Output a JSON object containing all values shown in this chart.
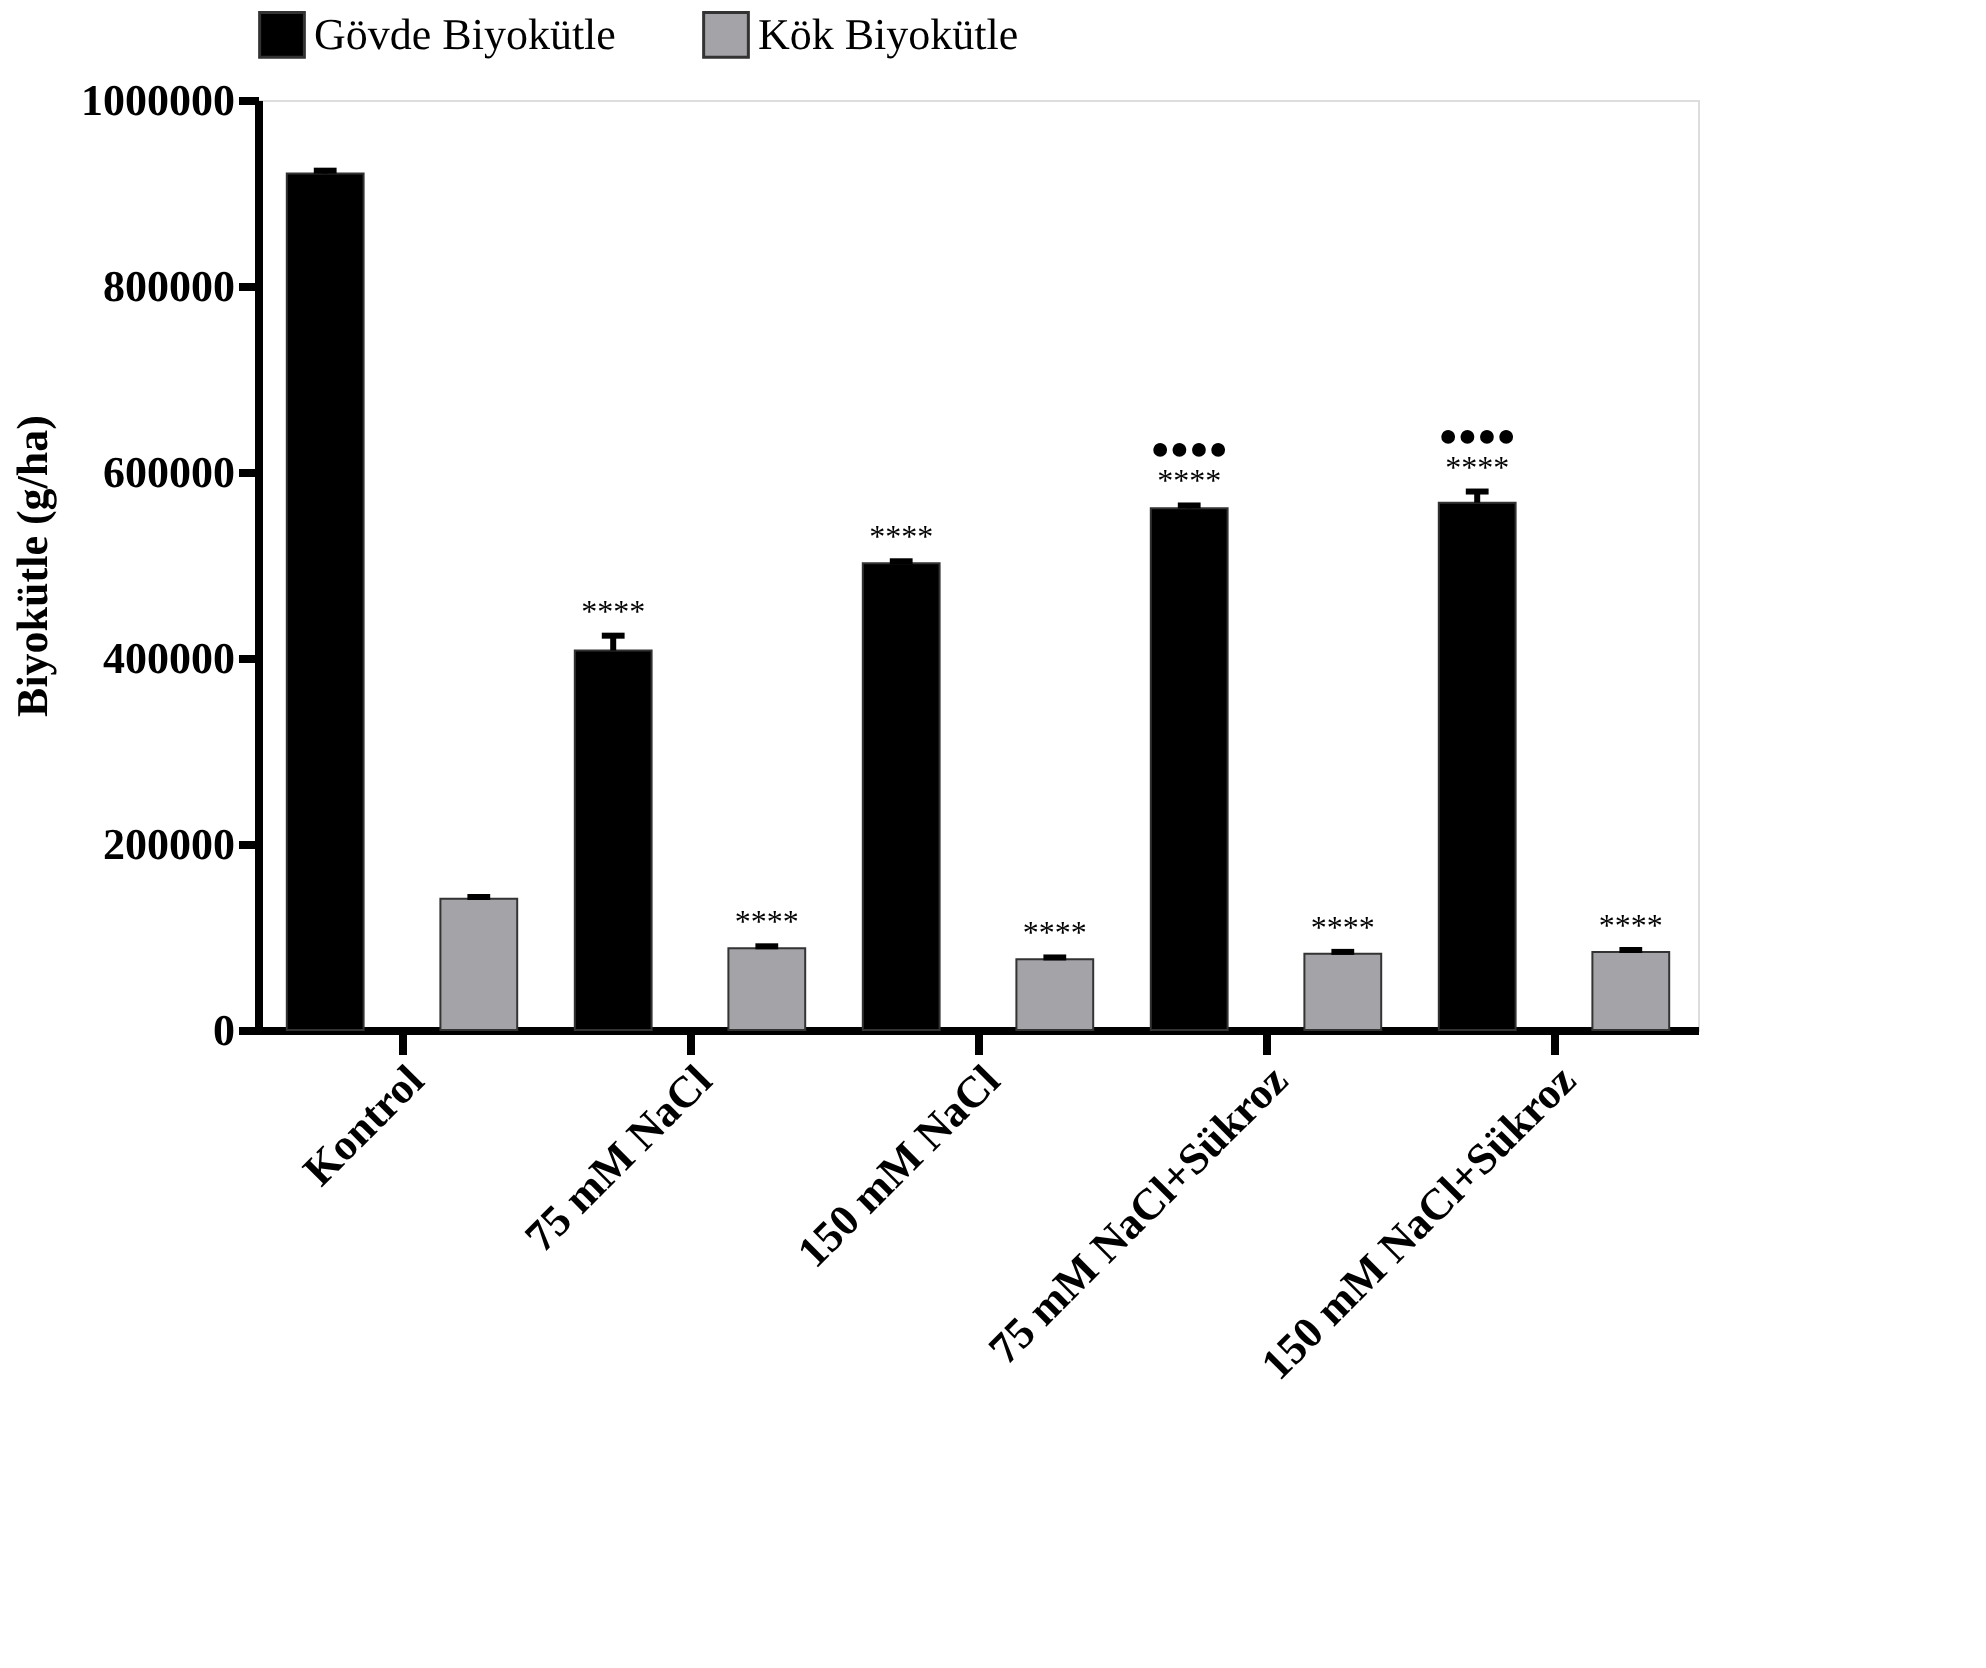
{
  "chart_data": {
    "type": "bar",
    "ylabel": "Biyokütle (g/ha)",
    "categories": [
      "Kontrol",
      "75 mM NaCl",
      "150 mM NaCl",
      "75 mM NaCl+Sükroz",
      "150 mM NaCl+Sükroz"
    ],
    "series": [
      {
        "name": "Gövde Biyokütle",
        "color": "#000000",
        "values": [
          921000,
          408000,
          502000,
          561000,
          567000
        ],
        "errors": [
          3000,
          16000,
          2000,
          3000,
          12000
        ],
        "value_labels": [
          null,
          "****",
          "****",
          "●●●●\n****",
          "●●●●\n****"
        ]
      },
      {
        "name": "Kök Biyokütle",
        "color": "#a3a3a8",
        "values": [
          141000,
          88000,
          76000,
          82000,
          84000
        ],
        "errors": [
          2000,
          2000,
          2000,
          2000,
          2000
        ],
        "value_labels": [
          null,
          "****",
          "****",
          "****",
          "****"
        ]
      }
    ],
    "ylim": [
      0,
      1000000
    ],
    "yticks": [
      0,
      200000,
      400000,
      600000,
      800000,
      1000000
    ],
    "grid": false,
    "legend": "top"
  }
}
